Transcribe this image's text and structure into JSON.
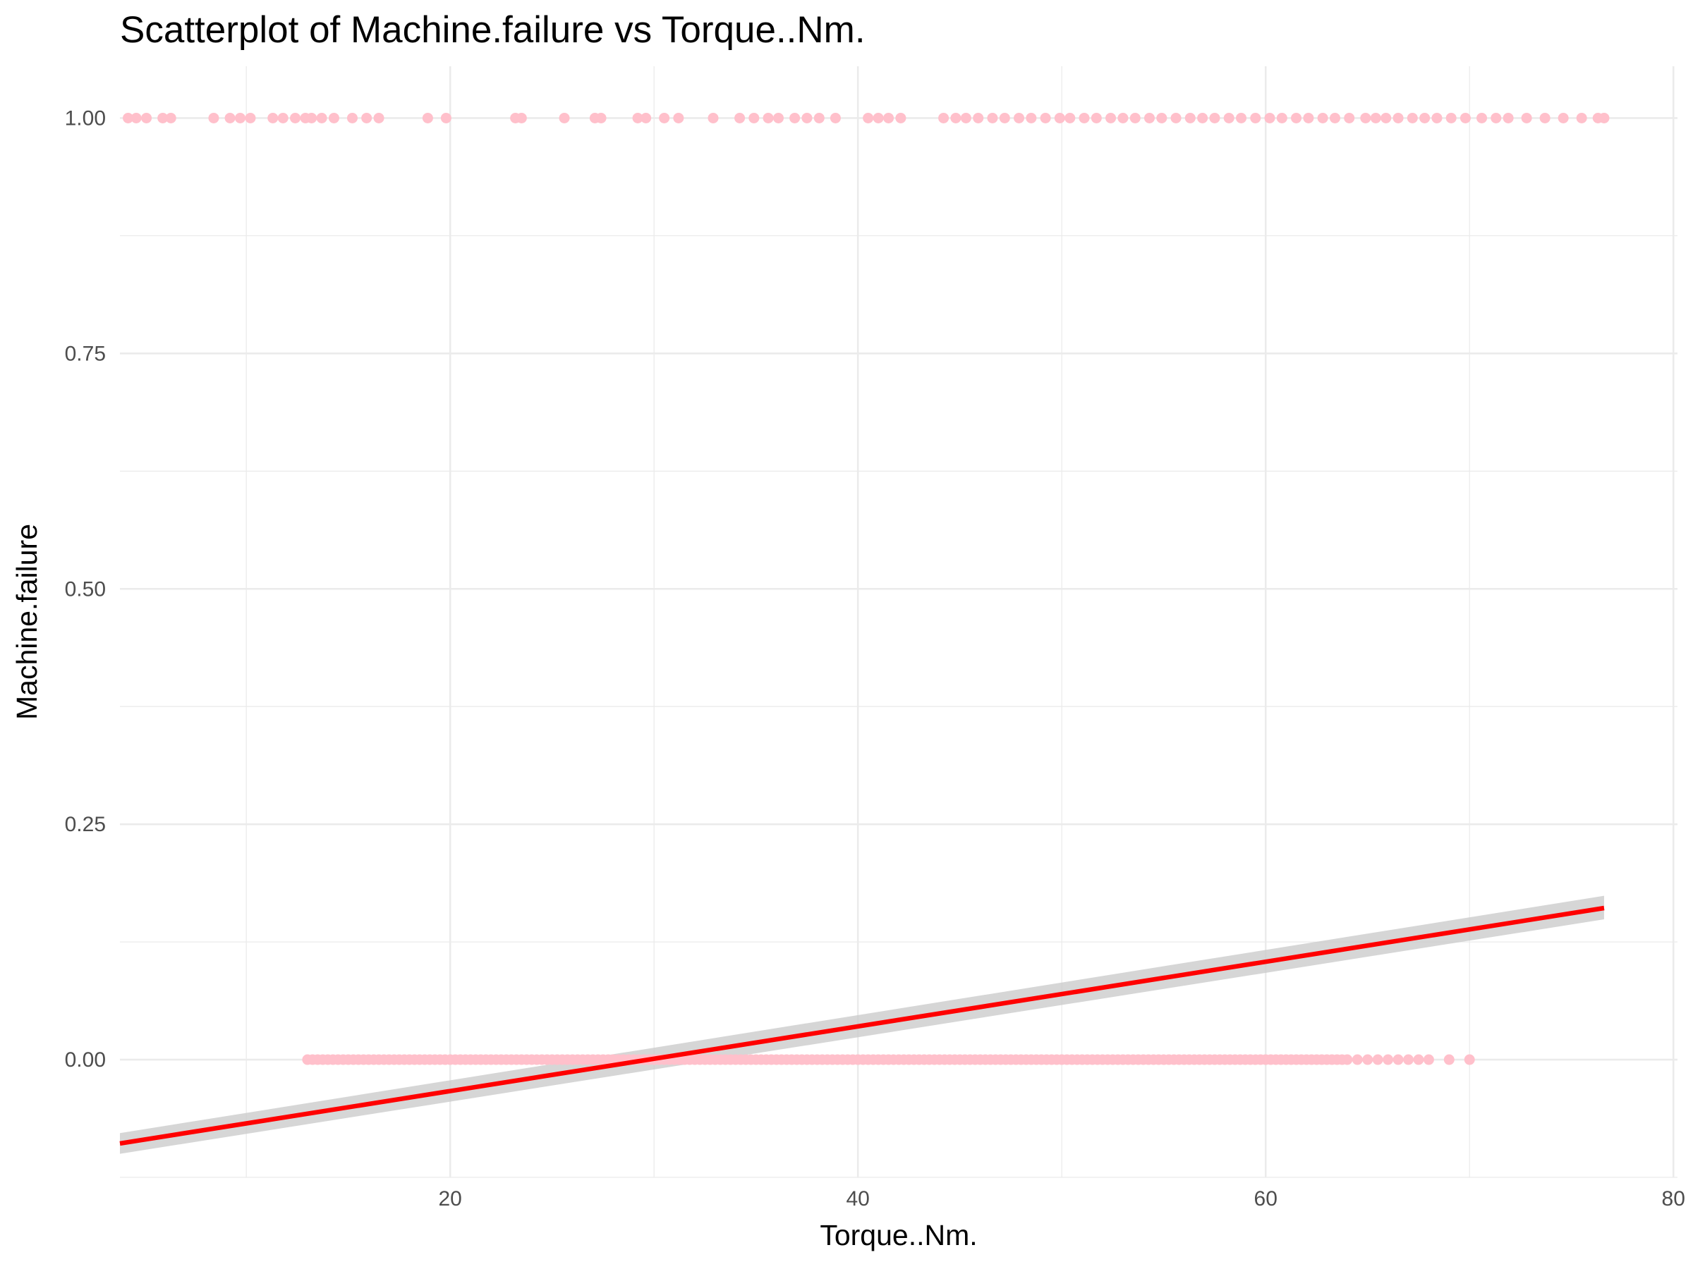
{
  "chart_data": {
    "type": "scatter",
    "title": "Scatterplot of Machine.failure vs Torque..Nm.",
    "xlabel": "Torque..Nm.",
    "ylabel": "Machine.failure",
    "xlim": [
      3.8,
      80.2
    ],
    "ylim": [
      -0.125,
      1.055
    ],
    "x_ticks": [
      20,
      40,
      60,
      80
    ],
    "y_ticks": [
      0.0,
      0.25,
      0.5,
      0.75,
      1.0
    ],
    "x_tick_labels": [
      "20",
      "40",
      "60",
      "80"
    ],
    "y_tick_labels": [
      "0.00",
      "0.25",
      "0.50",
      "0.75",
      "1.00"
    ],
    "grid": true,
    "legend": "none",
    "point_color": "#FFC0CB",
    "series": [
      {
        "values_y": 1,
        "x": [
          4.2,
          4.6,
          5.1,
          5.9,
          6.3,
          8.4,
          9.2,
          9.7,
          10.2,
          11.3,
          11.8,
          12.4,
          12.9,
          13.2,
          13.7,
          14.3,
          15.2,
          15.9,
          16.5,
          18.9,
          19.8,
          23.2,
          23.5,
          25.6,
          27.1,
          27.4,
          29.2,
          29.6,
          30.5,
          31.2,
          32.9,
          34.2,
          34.9,
          35.6,
          36.1,
          36.9,
          37.5,
          38.1,
          38.9,
          40.5,
          41.0,
          41.5,
          42.1,
          44.2,
          44.8,
          45.3,
          45.9,
          46.6,
          47.2,
          47.9,
          48.5,
          49.2,
          49.9,
          50.4,
          51.1,
          51.7,
          52.4,
          53.0,
          53.6,
          54.3,
          54.9,
          55.6,
          56.3,
          56.9,
          57.5,
          58.2,
          58.8,
          59.5,
          60.2,
          60.8,
          61.5,
          62.1,
          62.8,
          63.4,
          64.1,
          64.9,
          65.4,
          65.9,
          66.5,
          67.2,
          67.8,
          68.4,
          69.1,
          69.8,
          70.6,
          71.3,
          71.9,
          72.8,
          73.7,
          74.6,
          75.5,
          76.3,
          76.6
        ]
      },
      {
        "values_y": 0,
        "x_range": [
          13.0,
          64.0
        ],
        "x_sparse": [
          64.5,
          65.0,
          65.5,
          66.0,
          66.5,
          67.0,
          67.5,
          68.0,
          69.0,
          70.0
        ]
      }
    ],
    "fit_line": {
      "type": "linear",
      "color": "#FF0000",
      "band_color": "#CCCCCC",
      "x": [
        3.8,
        76.6
      ],
      "y": [
        -0.089,
        0.161
      ],
      "se_low": [
        -0.1,
        0.149
      ],
      "se_high": [
        -0.078,
        0.174
      ]
    }
  }
}
